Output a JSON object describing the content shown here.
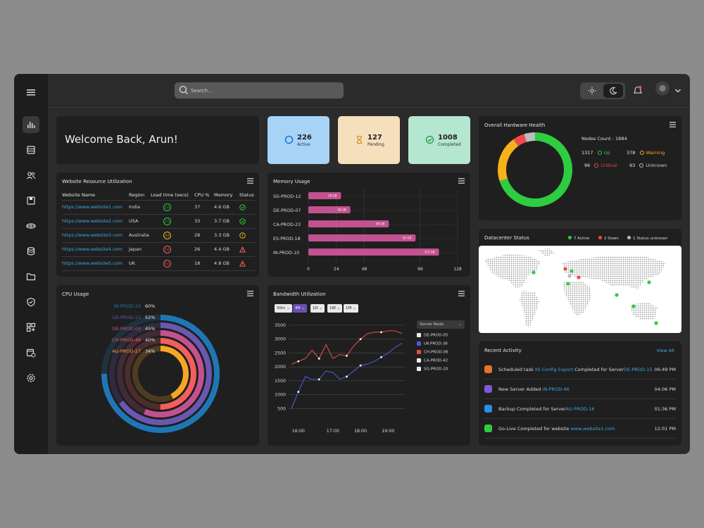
{
  "search": {
    "placeholder": "Search..."
  },
  "welcome": {
    "text": "Welcome Back, Arun!"
  },
  "stats": [
    {
      "value": "226",
      "label": "Active",
      "color": "#a7d3f7"
    },
    {
      "value": "127",
      "label": "Pending",
      "color": "#f6dfbc"
    },
    {
      "value": "1008",
      "label": "Completed",
      "color": "#b5e6cf"
    }
  ],
  "hardware": {
    "title": "Overall Hardware Health",
    "nodes_count": "Nodes Count : 1884",
    "up": {
      "value": "1317",
      "label": "Up",
      "color": "#2ecc40"
    },
    "warning": {
      "value": "378",
      "label": "Warning",
      "color": "#f5b21b"
    },
    "critical": {
      "value": "96",
      "label": "Critical",
      "color": "#f04b4b"
    },
    "unknown": {
      "value": "93",
      "label": "Unknown",
      "color": "#bdbdbd"
    }
  },
  "resource": {
    "title": "Website Resource Utilization",
    "headers": [
      "Website Name",
      "Region",
      "Load time (secs)",
      "CPU %",
      "Memory",
      "Status"
    ],
    "rows": [
      {
        "site": "https://www.website1.com",
        "region": "India",
        "load": "2.0",
        "cpu": "37",
        "mem": "4.6 GB",
        "status": "ok"
      },
      {
        "site": "https://www.website2.com",
        "region": "USA",
        "load": "2.0",
        "cpu": "33",
        "mem": "3.7 GB",
        "status": "ok"
      },
      {
        "site": "https://www.website3.com",
        "region": "Australia",
        "load": "4.0",
        "cpu": "28",
        "mem": "3.3 GB",
        "status": "warn"
      },
      {
        "site": "https://www.website4.com",
        "region": "Japan",
        "load": "5.0",
        "cpu": "26",
        "mem": "4.4 GB",
        "status": "alert"
      },
      {
        "site": "https://www.website5.com",
        "region": "UK",
        "load": "6.0",
        "cpu": "18",
        "mem": "4.8 GB",
        "status": "alert"
      }
    ]
  },
  "memory": {
    "title": "Memory Usage",
    "chart_data": {
      "type": "bar",
      "categories": [
        "SG-PROD-12",
        "DE-PROD-07",
        "CA-PROD-23",
        "ES-PROD-18",
        "IN-PROD-10"
      ],
      "values": [
        28,
        36,
        69,
        92,
        112
      ],
      "value_labels": [
        "28 GB",
        "36 GB",
        "69 GB",
        "92 GB",
        "112 GB"
      ],
      "xticks": [
        "0",
        "24",
        "48",
        "96",
        "128"
      ],
      "xlim": [
        0,
        128
      ],
      "color": "#c2528f"
    }
  },
  "cpu": {
    "title": "CPU Usage",
    "chart_data": {
      "type": "radial-bar",
      "series": [
        {
          "name": "IN-PROD-10",
          "value": 60,
          "label": "60%",
          "color": "#1e77b4"
        },
        {
          "name": "US-PROD-13",
          "value": 52,
          "label": "52%",
          "color": "#6a57b0"
        },
        {
          "name": "DE-PROD-03",
          "value": 45,
          "label": "45%",
          "color": "#c2528f"
        },
        {
          "name": "CH-PROD-48",
          "value": 40,
          "label": "40%",
          "color": "#f25f5c"
        },
        {
          "name": "AU-PROD-27",
          "value": 34,
          "label": "34%",
          "color": "#f5a623"
        }
      ]
    }
  },
  "bandwidth": {
    "title": "Bandwidth Utilization",
    "ranges": [
      "30m",
      "4H",
      "1D",
      "1W",
      "1M"
    ],
    "selected_range": "4H",
    "node_select": "Server Node",
    "nodes": [
      {
        "name": "DE-PROD-05",
        "checked": false
      },
      {
        "name": "UK-PROD-38",
        "checked": true,
        "color": "#4a5bd4"
      },
      {
        "name": "CH-PROD-06",
        "checked": true,
        "color": "#e04b4b"
      },
      {
        "name": "CA-PROD-42",
        "checked": false
      },
      {
        "name": "SG-PROD-20",
        "checked": false
      }
    ],
    "chart_data": {
      "type": "line",
      "x": [
        "15:45",
        "16:00",
        "16:15",
        "16:20",
        "16:30",
        "16:45",
        "17:00",
        "17:15",
        "17:30",
        "17:45",
        "18:00",
        "18:15",
        "18:30",
        "18:45",
        "19:00",
        "19:15",
        "19:30"
      ],
      "xticks": [
        "16:00",
        "17:00",
        "18:00",
        "19:00"
      ],
      "ylim": [
        0,
        3500
      ],
      "yticks": [
        "500",
        "1000",
        "1500",
        "2000",
        "2500",
        "3000",
        "3500"
      ],
      "series": [
        {
          "name": "UK-PROD-38",
          "color": "#4a5bd4",
          "values": [
            500,
            1100,
            1650,
            1550,
            1550,
            1850,
            1800,
            1550,
            1650,
            1850,
            2050,
            2100,
            2200,
            2350,
            2500,
            2700,
            2850
          ]
        },
        {
          "name": "CH-PROD-06",
          "color": "#e04b4b",
          "values": [
            2100,
            2200,
            2300,
            2600,
            2300,
            2800,
            2300,
            2450,
            2400,
            2750,
            3000,
            3200,
            3250,
            3250,
            3300,
            3300,
            3200
          ]
        }
      ]
    }
  },
  "datacenter": {
    "title": "Datacenter Status",
    "legend": [
      {
        "label": "7 Active",
        "color": "#2ecc40"
      },
      {
        "label": "2 Down",
        "color": "#f04b4b"
      },
      {
        "label": "1 Status unknown",
        "color": "#bdbdbd"
      }
    ]
  },
  "activity": {
    "title": "Recent Activity",
    "view_all": "View All",
    "items": [
      {
        "pre": "Scheduled task ",
        "hl1": "IIS Config Export",
        "mid": " Completed for Server",
        "hl2": "DE-PROD-15",
        "time": "06:49 PM",
        "color": "#e8732a"
      },
      {
        "pre": "New Server Added ",
        "hl1": "",
        "mid": "",
        "hl2": "IN-PROD-46",
        "time": "04:06 PM",
        "color": "#7c5cd6"
      },
      {
        "pre": "Backup Completed for Server",
        "hl1": "",
        "mid": "",
        "hl2": "AU-PROD-16",
        "time": "01:36 PM",
        "color": "#2b8ee6"
      },
      {
        "pre": "Go-Live Completed for website ",
        "hl1": "",
        "mid": "",
        "hl2": "www.website1.com",
        "time": "12:01 PM",
        "color": "#2ecc40"
      }
    ]
  }
}
